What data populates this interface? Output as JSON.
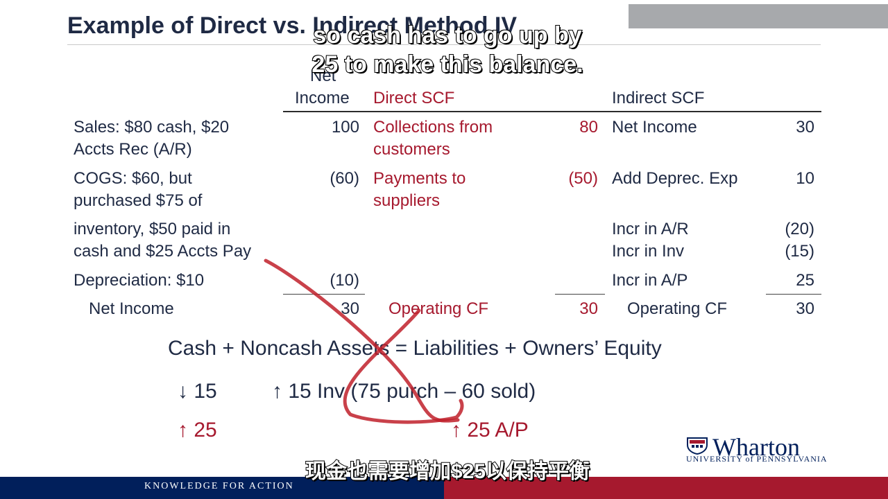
{
  "slide": {
    "title": "Example of Direct vs. Indirect Method IV",
    "caption_line1": "so cash has to go up by",
    "caption_line2": "25 to make this balance.",
    "subtitle_cn": "现金也需要增加$25以保持平衡"
  },
  "headers": {
    "net_income_1": "Net",
    "net_income_2": "Income",
    "direct": "Direct SCF",
    "indirect": "Indirect SCF"
  },
  "rows": {
    "sales_1": "Sales: $80 cash, $20",
    "sales_2": "Accts Rec (A/R)",
    "sales_ni": "100",
    "collections_1": "Collections from",
    "collections_2": "customers",
    "collections_val": "80",
    "ind_ni_label": "Net Income",
    "ind_ni_val": "30",
    "cogs_1": "COGS: $60, but",
    "cogs_2": "purchased $75 of",
    "cogs_ni": "(60)",
    "payments_1": "Payments to",
    "payments_2": "suppliers",
    "payments_val": "(50)",
    "deprec_label": "Add Deprec. Exp",
    "deprec_val": "10",
    "inv_1": "inventory, $50 paid in",
    "inv_2": "cash and $25 Accts Pay",
    "ar_label": "Incr in A/R",
    "ar_val": "(20)",
    "inv_label": "Incr in Inv",
    "inv_val": "(15)",
    "dep_label": "Depreciation: $10",
    "dep_ni": "(10)",
    "ap_label": "Incr in A/P",
    "ap_val": "25",
    "total_label": "Net Income",
    "total_ni": "30",
    "opcf_direct_label": "Operating CF",
    "opcf_direct_val": "30",
    "opcf_indirect_label": "Operating CF",
    "opcf_indirect_val": "30"
  },
  "equation": {
    "line": "Cash + Noncash Assets = Liabilities + Owners’ Equity",
    "cash_down": "↓ 15",
    "inv_up": "↑ 15 Inv (75 purch – 60 sold)",
    "cash_up": "↑ 25",
    "ap_up": "↑ 25 A/P"
  },
  "footer": {
    "tagline": "KNOWLEDGE FOR ACTION",
    "logo_word": "Wharton",
    "logo_sub": "UNIVERSITY of PENNSYLVANIA"
  },
  "colors": {
    "navy": "#011f5b",
    "red": "#a6192e",
    "annotation": "#c0202a"
  },
  "icons": [
    "penn-shield-icon"
  ]
}
